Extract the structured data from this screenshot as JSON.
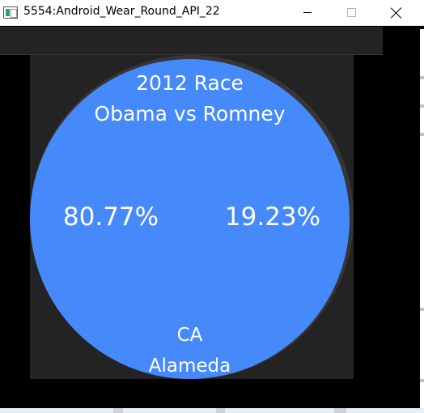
{
  "window": {
    "title": "5554:Android_Wear_Round_API_22",
    "icon": "emulator-app-icon",
    "controls": {
      "minimize": "minimize-icon",
      "maximize": "maximize-icon",
      "close": "close-icon"
    }
  },
  "watch": {
    "race_title": "2012 Race",
    "matchup": "Obama vs Romney",
    "left_percent": "80.77%",
    "right_percent": "19.23%",
    "state": "CA",
    "county": "Alameda",
    "colors": {
      "face": "#4689fb",
      "bezel": "#363636",
      "text": "#ffffff"
    }
  }
}
